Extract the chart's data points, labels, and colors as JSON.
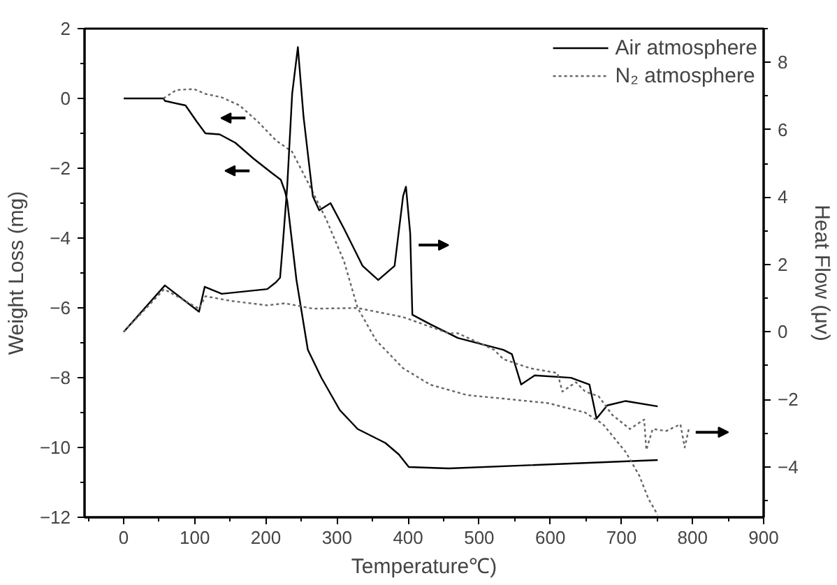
{
  "chart_data": {
    "type": "line",
    "xlabel": "Temperature℃)",
    "ylabel": "Weight Loss (mg)",
    "y2label": "Heat Flow (μv)",
    "xlim": [
      -55,
      900
    ],
    "xticks": [
      0,
      100,
      200,
      300,
      400,
      500,
      600,
      700,
      800,
      900
    ],
    "ylim": [
      -12,
      2
    ],
    "yticks": [
      -12,
      -10,
      -8,
      -6,
      -4,
      -2,
      0,
      2
    ],
    "y2lim": [
      -5.5,
      9
    ],
    "y2ticks": [
      -4,
      -2,
      0,
      2,
      4,
      6,
      8
    ],
    "grid": false,
    "legend": "top right",
    "marker": "none",
    "series": [
      {
        "name": "Air atmosphere",
        "color": "#000000",
        "line_style": "solid",
        "x": [
          0,
          56,
          58,
          87,
          103,
          115,
          135,
          157,
          183,
          208,
          221,
          227,
          230,
          243,
          259,
          278,
          304,
          329,
          368,
          387,
          401,
          457,
          751
        ],
        "values": [
          0,
          0,
          -0.07,
          -0.2,
          -0.67,
          -1.0,
          -1.03,
          -1.27,
          -1.73,
          -2.13,
          -2.33,
          -2.67,
          -2.93,
          -5.2,
          -7.2,
          -8.0,
          -8.93,
          -9.47,
          -9.87,
          -10.2,
          -10.56,
          -10.6,
          -10.36
        ]
      },
      {
        "name": "N₂ atmosphere",
        "color": "#666666",
        "line_style": "dotted",
        "x": [
          56,
          74,
          99,
          115,
          138,
          163,
          189,
          214,
          237,
          259,
          285,
          310,
          329,
          355,
          393,
          431,
          483,
          534,
          597,
          649,
          674,
          706,
          725,
          738,
          751
        ],
        "values": [
          0,
          0.24,
          0.27,
          0.13,
          0.03,
          -0.2,
          -0.67,
          -1.2,
          -1.53,
          -2.4,
          -3.47,
          -4.67,
          -6.0,
          -6.93,
          -7.73,
          -8.2,
          -8.5,
          -8.6,
          -8.73,
          -9.0,
          -9.33,
          -10.13,
          -10.8,
          -11.47,
          -11.93
        ]
      },
      {
        "color": "#000000",
        "line_style": "solid",
        "axis": "y2",
        "x": [
          0,
          58,
          106,
          114,
          138,
          202,
          214,
          220,
          224,
          230,
          237,
          245,
          253,
          266,
          275,
          291,
          310,
          336,
          358,
          381,
          393,
          397,
          403,
          406,
          431,
          470,
          534,
          546,
          559,
          578,
          629,
          655,
          665,
          680,
          706,
          751
        ],
        "values": [
          0.0,
          1.38,
          0.6,
          1.34,
          1.13,
          1.27,
          1.47,
          1.61,
          2.65,
          4.31,
          7.07,
          8.45,
          6.38,
          4.03,
          3.61,
          3.82,
          3.06,
          1.96,
          1.54,
          1.96,
          4.03,
          4.31,
          2.92,
          0.51,
          0.23,
          -0.18,
          -0.53,
          -0.66,
          -1.56,
          -1.29,
          -1.36,
          -1.56,
          -2.57,
          -2.18,
          -2.05,
          -2.21
        ]
      },
      {
        "color": "#666666",
        "line_style": "dotted",
        "axis": "y2",
        "x": [
          0,
          57,
          106,
          115,
          151,
          202,
          227,
          266,
          329,
          393,
          457,
          470,
          521,
          534,
          572,
          610,
          617,
          636,
          649,
          668,
          687,
          712,
          732,
          735,
          744,
          763,
          783,
          789,
          795
        ],
        "values": [
          0.0,
          1.27,
          0.69,
          1.06,
          0.92,
          0.79,
          0.85,
          0.69,
          0.71,
          0.44,
          -0.04,
          -0.04,
          -0.53,
          -0.81,
          -1.08,
          -1.22,
          -1.77,
          -1.49,
          -1.77,
          -1.91,
          -2.46,
          -2.88,
          -2.6,
          -3.5,
          -2.88,
          -2.94,
          -2.74,
          -3.43,
          -2.86
        ]
      }
    ]
  }
}
